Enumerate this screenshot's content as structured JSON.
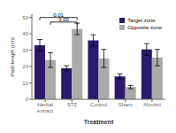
{
  "chart_data": {
    "type": "bar",
    "xlabel": "Treatment",
    "ylabel": "Path length (cm)",
    "categories": [
      "Herbal extract",
      "STZ",
      "Control",
      "Sham",
      "Alcohol"
    ],
    "series": [
      {
        "name": "Target zone",
        "color": "#2B1A6B",
        "values": [
          33,
          19,
          36,
          14,
          30.5
        ],
        "errors": [
          3.5,
          1.5,
          3.5,
          1.5,
          3.5
        ]
      },
      {
        "name": "Opposite zone",
        "color": "#AAAAAA",
        "values": [
          24,
          43,
          25,
          7.5,
          25.5
        ],
        "errors": [
          4.5,
          3.5,
          5.5,
          1.0,
          5.0
        ]
      }
    ],
    "ylim": [
      0,
      52
    ],
    "yticks": [
      0,
      10,
      20,
      30,
      40,
      50
    ],
    "grid": false,
    "legend": "upper right",
    "annotations": [
      {
        "text": "0.01",
        "y": 50,
        "from": {
          "category": "Herbal extract",
          "series": "Target zone"
        },
        "to": {
          "category": "STZ",
          "series": "Opposite zone"
        }
      },
      {
        "text": "0.00",
        "y": 47.2,
        "from": {
          "category": "Herbal extract",
          "series": "Opposite zone"
        },
        "to": {
          "category": "STZ",
          "series": "Opposite zone"
        }
      }
    ]
  }
}
